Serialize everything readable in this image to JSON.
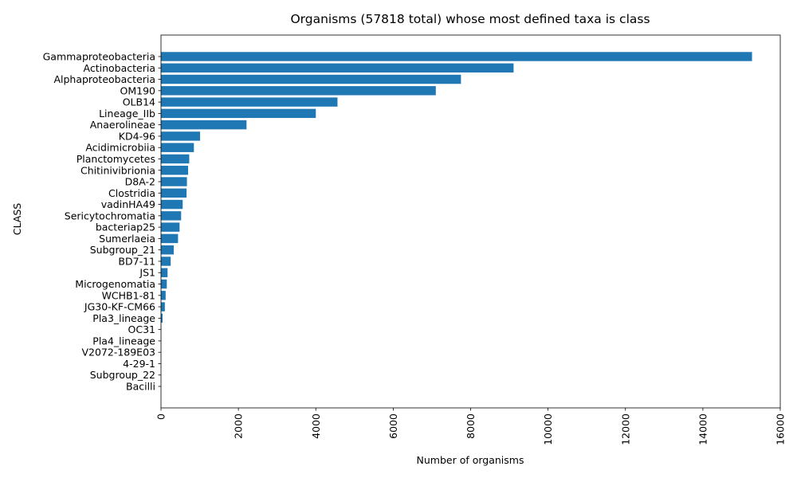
{
  "chart_data": {
    "type": "bar",
    "orientation": "horizontal",
    "title": "Organisms (57818 total) whose most defined taxa is class",
    "xlabel": "Number of organisms",
    "ylabel": "CLASS",
    "xlim": [
      0,
      16000
    ],
    "xticks": [
      "0",
      "2000",
      "4000",
      "6000",
      "8000",
      "10000",
      "12000",
      "14000",
      "16000"
    ],
    "tick_rotation": "vertical",
    "grid": false,
    "legend": "none",
    "bar_color": "#1f77b4",
    "categories": [
      "Gammaproteobacteria",
      "Actinobacteria",
      "Alphaproteobacteria",
      "OM190",
      "OLB14",
      "Lineage_IIb",
      "Anaerolineae",
      "KD4-96",
      "Acidimicrobiia",
      "Planctomycetes",
      "Chitinivibrionia",
      "D8A-2",
      "Clostridia",
      "vadinHA49",
      "Sericytochromatia",
      "bacteriap25",
      "Sumerlaeia",
      "Subgroup_21",
      "BD7-11",
      "JS1",
      "Microgenomatia",
      "WCHB1-81",
      "JG30-KF-CM66",
      "Pla3_lineage",
      "OC31",
      "Pla4_lineage",
      "V2072-189E03",
      "4-29-1",
      "Subgroup_22",
      "Bacilli"
    ],
    "values": [
      15270,
      9110,
      7750,
      7100,
      4560,
      4000,
      2210,
      1010,
      850,
      730,
      700,
      670,
      660,
      560,
      520,
      480,
      440,
      330,
      250,
      170,
      150,
      120,
      100,
      40,
      8,
      5,
      4,
      3,
      2,
      1
    ]
  }
}
